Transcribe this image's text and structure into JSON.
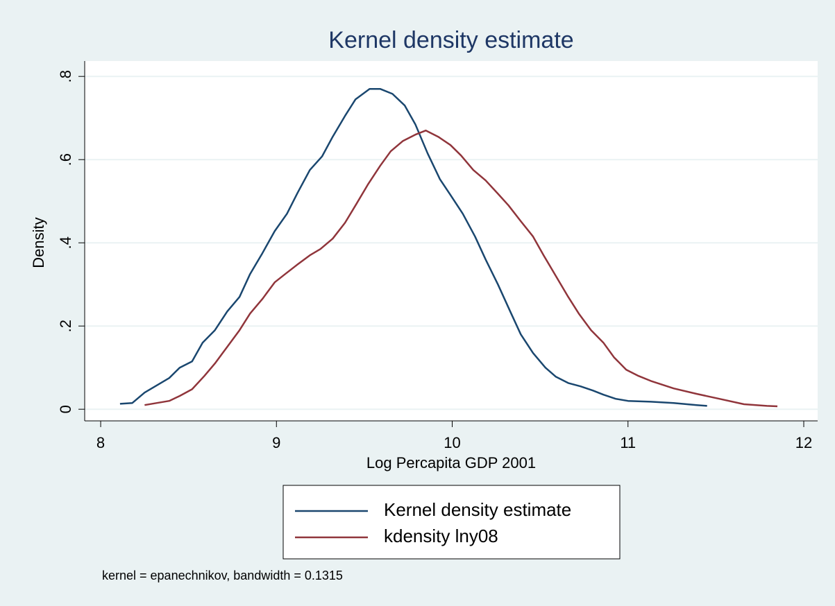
{
  "chart_data": {
    "type": "line",
    "title": "Kernel density estimate",
    "x_label": "Log Percapita GDP 2001",
    "y_label": "Density",
    "note": "kernel = epanechnikov, bandwidth = 0.1315",
    "xlim": [
      7.909,
      12.079
    ],
    "ylim": [
      -0.028,
      0.837
    ],
    "xticks": [
      8,
      9,
      10,
      11,
      12
    ],
    "yticks": [
      0,
      {
        "value": 0.2,
        "label": ".2"
      },
      {
        "value": 0.4,
        "label": ".4"
      },
      {
        "value": 0.6,
        "label": ".6"
      },
      {
        "value": 0.8,
        "label": ".8"
      }
    ],
    "grid": true,
    "legend": "bottom",
    "series": [
      {
        "name": "Kernel density estimate",
        "color": "#1a476f",
        "x": [
          8.11,
          8.18,
          8.25,
          8.33,
          8.39,
          8.45,
          8.52,
          8.58,
          8.65,
          8.72,
          8.79,
          8.85,
          8.92,
          8.99,
          9.06,
          9.12,
          9.19,
          9.26,
          9.32,
          9.39,
          9.45,
          9.53,
          9.59,
          9.66,
          9.73,
          9.79,
          9.86,
          9.93,
          9.99,
          10.06,
          10.13,
          10.19,
          10.26,
          10.33,
          10.39,
          10.46,
          10.53,
          10.59,
          10.66,
          10.73,
          10.8,
          10.86,
          10.93,
          11.0,
          11.13,
          11.26,
          11.39,
          11.45
        ],
        "values": [
          0.013,
          0.015,
          0.04,
          0.06,
          0.075,
          0.1,
          0.115,
          0.16,
          0.19,
          0.235,
          0.27,
          0.325,
          0.375,
          0.428,
          0.47,
          0.52,
          0.575,
          0.608,
          0.655,
          0.705,
          0.745,
          0.77,
          0.77,
          0.758,
          0.73,
          0.685,
          0.615,
          0.553,
          0.515,
          0.47,
          0.415,
          0.36,
          0.3,
          0.235,
          0.18,
          0.135,
          0.1,
          0.078,
          0.063,
          0.055,
          0.045,
          0.035,
          0.025,
          0.02,
          0.018,
          0.015,
          0.01,
          0.008
        ]
      },
      {
        "name": "kdensity lny08",
        "color": "#90353b",
        "x": [
          8.25,
          8.32,
          8.39,
          8.45,
          8.52,
          8.59,
          8.65,
          8.72,
          8.79,
          8.85,
          8.92,
          8.99,
          9.05,
          9.12,
          9.19,
          9.25,
          9.32,
          9.39,
          9.45,
          9.52,
          9.59,
          9.65,
          9.72,
          9.79,
          9.85,
          9.92,
          9.99,
          10.05,
          10.12,
          10.19,
          10.26,
          10.32,
          10.39,
          10.46,
          10.52,
          10.59,
          10.66,
          10.72,
          10.79,
          10.86,
          10.92,
          10.99,
          11.06,
          11.13,
          11.26,
          11.39,
          11.52,
          11.66,
          11.79,
          11.85
        ],
        "values": [
          0.01,
          0.015,
          0.02,
          0.032,
          0.048,
          0.08,
          0.11,
          0.15,
          0.19,
          0.23,
          0.265,
          0.305,
          0.325,
          0.348,
          0.37,
          0.385,
          0.41,
          0.448,
          0.49,
          0.54,
          0.585,
          0.62,
          0.645,
          0.66,
          0.67,
          0.655,
          0.635,
          0.61,
          0.575,
          0.55,
          0.518,
          0.49,
          0.452,
          0.415,
          0.37,
          0.32,
          0.27,
          0.23,
          0.19,
          0.16,
          0.125,
          0.095,
          0.08,
          0.068,
          0.05,
          0.037,
          0.025,
          0.012,
          0.008,
          0.007
        ]
      }
    ]
  }
}
